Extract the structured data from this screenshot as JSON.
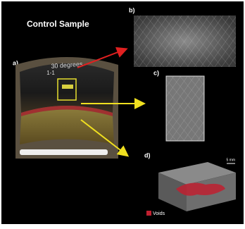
{
  "title": "Control Sample",
  "panels": [
    "a)",
    "b)",
    "c)",
    "d)"
  ],
  "sample_text": [
    "30 degrees",
    "1-1"
  ],
  "legend": "Voids",
  "scale": "5 mm"
}
